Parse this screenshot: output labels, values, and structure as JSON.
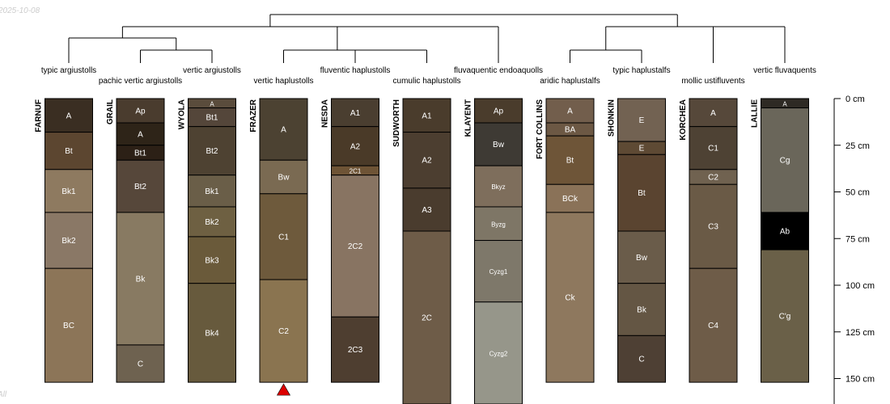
{
  "date_stamp": "2025-10-08",
  "corner_mark": "All",
  "colors": {
    "line": "#000000",
    "label": "#ffffff",
    "truncation_marker": "#dd0000"
  },
  "chart_data": {
    "type": "soil-profile-sketch",
    "depth_axis": {
      "unit": "cm",
      "max_depth": 165,
      "ticks": [
        0,
        25,
        50,
        75,
        100,
        125,
        150
      ],
      "tick_labels": [
        "0 cm",
        "25 cm",
        "50 cm",
        "75 cm",
        "100 cm",
        "125 cm",
        "150 cm"
      ]
    },
    "profiles": [
      {
        "name": "FARNUF",
        "taxon": "typic argiustolls",
        "total_depth": 152,
        "horizons": [
          {
            "name": "A",
            "top": 0,
            "bottom": 18,
            "color": "#3a2e22"
          },
          {
            "name": "Bt",
            "top": 18,
            "bottom": 38,
            "color": "#5c4630"
          },
          {
            "name": "Bk1",
            "top": 38,
            "bottom": 61,
            "color": "#8e7a60"
          },
          {
            "name": "Bk2",
            "top": 61,
            "bottom": 91,
            "color": "#8a7866"
          },
          {
            "name": "BC",
            "top": 91,
            "bottom": 152,
            "color": "#8c7558"
          }
        ]
      },
      {
        "name": "GRAIL",
        "taxon": "pachic vertic argiustolls",
        "total_depth": 152,
        "horizons": [
          {
            "name": "Ap",
            "top": 0,
            "bottom": 13,
            "color": "#4a3c2e"
          },
          {
            "name": "A",
            "top": 13,
            "bottom": 25,
            "color": "#2e2418"
          },
          {
            "name": "Bt1",
            "top": 25,
            "bottom": 33,
            "color": "#2c2016"
          },
          {
            "name": "Bt2",
            "top": 33,
            "bottom": 61,
            "color": "#56473a"
          },
          {
            "name": "Bk",
            "top": 61,
            "bottom": 132,
            "color": "#887a62"
          },
          {
            "name": "C",
            "top": 132,
            "bottom": 152,
            "color": "#6e6250"
          }
        ]
      },
      {
        "name": "WYOLA",
        "taxon": "vertic argiustolls",
        "total_depth": 152,
        "horizons": [
          {
            "name": "A",
            "top": 0,
            "bottom": 5,
            "color": "#5a4c3c"
          },
          {
            "name": "Bt1",
            "top": 5,
            "bottom": 15,
            "color": "#54463a"
          },
          {
            "name": "Bt2",
            "top": 15,
            "bottom": 41,
            "color": "#4e4232"
          },
          {
            "name": "Bk1",
            "top": 41,
            "bottom": 58,
            "color": "#6a5e48"
          },
          {
            "name": "Bk2",
            "top": 58,
            "bottom": 74,
            "color": "#6e6042"
          },
          {
            "name": "Bk3",
            "top": 74,
            "bottom": 99,
            "color": "#6a5a3a"
          },
          {
            "name": "Bk4",
            "top": 99,
            "bottom": 152,
            "color": "#675a3d"
          }
        ]
      },
      {
        "name": "FRAZER",
        "taxon": "vertic haplustolls",
        "total_depth": 152,
        "truncated": true,
        "horizons": [
          {
            "name": "A",
            "top": 0,
            "bottom": 33,
            "color": "#4c4232"
          },
          {
            "name": "Bw",
            "top": 33,
            "bottom": 51,
            "color": "#7a6a52"
          },
          {
            "name": "C1",
            "top": 51,
            "bottom": 97,
            "color": "#6e5a3c"
          },
          {
            "name": "C2",
            "top": 97,
            "bottom": 152,
            "color": "#8a7450"
          }
        ]
      },
      {
        "name": "NESDA",
        "taxon": "fluventic haplustolls",
        "total_depth": 152,
        "horizons": [
          {
            "name": "A1",
            "top": 0,
            "bottom": 15,
            "color": "#4a3e30"
          },
          {
            "name": "A2",
            "top": 15,
            "bottom": 36,
            "color": "#4a3a28"
          },
          {
            "name": "2C1",
            "top": 36,
            "bottom": 41,
            "color": "#6e5436"
          },
          {
            "name": "2C2",
            "top": 41,
            "bottom": 117,
            "color": "#887462"
          },
          {
            "name": "2C3",
            "top": 117,
            "bottom": 152,
            "color": "#4e3e30"
          }
        ]
      },
      {
        "name": "SUDWORTH",
        "taxon": "cumulic haplustolls",
        "total_depth": 165,
        "horizons": [
          {
            "name": "A1",
            "top": 0,
            "bottom": 18,
            "color": "#4a3c2c"
          },
          {
            "name": "A2",
            "top": 18,
            "bottom": 48,
            "color": "#4c3e30"
          },
          {
            "name": "A3",
            "top": 48,
            "bottom": 71,
            "color": "#4a3c2e"
          },
          {
            "name": "2C",
            "top": 71,
            "bottom": 165,
            "color": "#6e5c48"
          }
        ]
      },
      {
        "name": "KLAYENT",
        "taxon": "fluvaquentic endoaquolls",
        "total_depth": 165,
        "horizons": [
          {
            "name": "Ap",
            "top": 0,
            "bottom": 13,
            "color": "#4a3c2c"
          },
          {
            "name": "Bw",
            "top": 13,
            "bottom": 36,
            "color": "#3e3a34"
          },
          {
            "name": "Bkyz",
            "top": 36,
            "bottom": 58,
            "color": "#7e6e5c"
          },
          {
            "name": "Byzg",
            "top": 58,
            "bottom": 76,
            "color": "#7e7666"
          },
          {
            "name": "Cyzg1",
            "top": 76,
            "bottom": 109,
            "color": "#7e786a"
          },
          {
            "name": "Cyzg2",
            "top": 109,
            "bottom": 165,
            "color": "#96968a"
          }
        ]
      },
      {
        "name": "FORT COLLINS",
        "taxon": "aridic haplustalfs",
        "total_depth": 152,
        "horizons": [
          {
            "name": "A",
            "top": 0,
            "bottom": 13,
            "color": "#725e4c"
          },
          {
            "name": "BA",
            "top": 13,
            "bottom": 20,
            "color": "#6c5844"
          },
          {
            "name": "Bt",
            "top": 20,
            "bottom": 46,
            "color": "#6e5538"
          },
          {
            "name": "BCk",
            "top": 46,
            "bottom": 61,
            "color": "#8a7258"
          },
          {
            "name": "Ck",
            "top": 61,
            "bottom": 152,
            "color": "#8e785e"
          }
        ]
      },
      {
        "name": "SHONKIN",
        "taxon": "typic haplustalfs",
        "total_depth": 152,
        "horizons": [
          {
            "name": "E",
            "top": 0,
            "bottom": 23,
            "color": "#726252"
          },
          {
            "name": "E",
            "top": 23,
            "bottom": 30,
            "color": "#5e4a34"
          },
          {
            "name": "Bt",
            "top": 30,
            "bottom": 71,
            "color": "#5a4430"
          },
          {
            "name": "Bw",
            "top": 71,
            "bottom": 99,
            "color": "#6a5c4a"
          },
          {
            "name": "Bk",
            "top": 99,
            "bottom": 127,
            "color": "#645644"
          },
          {
            "name": "C",
            "top": 127,
            "bottom": 152,
            "color": "#4e4034"
          }
        ]
      },
      {
        "name": "KORCHEA",
        "taxon": "mollic ustifluvents",
        "total_depth": 152,
        "horizons": [
          {
            "name": "A",
            "top": 0,
            "bottom": 15,
            "color": "#56483a"
          },
          {
            "name": "C1",
            "top": 15,
            "bottom": 38,
            "color": "#4e4234"
          },
          {
            "name": "C2",
            "top": 38,
            "bottom": 46,
            "color": "#706250"
          },
          {
            "name": "C3",
            "top": 46,
            "bottom": 91,
            "color": "#6a5a46"
          },
          {
            "name": "C4",
            "top": 91,
            "bottom": 152,
            "color": "#6e5c48"
          }
        ]
      },
      {
        "name": "LALLIE",
        "taxon": "vertic fluvaquents",
        "total_depth": 152,
        "horizons": [
          {
            "name": "A",
            "top": 0,
            "bottom": 5,
            "color": "#2e2a24"
          },
          {
            "name": "Cg",
            "top": 5,
            "bottom": 61,
            "color": "#6a665a"
          },
          {
            "name": "Ab",
            "top": 61,
            "bottom": 81,
            "color": "#000000"
          },
          {
            "name": "C'g",
            "top": 81,
            "bottom": 152,
            "color": "#6a6048"
          }
        ]
      }
    ]
  }
}
